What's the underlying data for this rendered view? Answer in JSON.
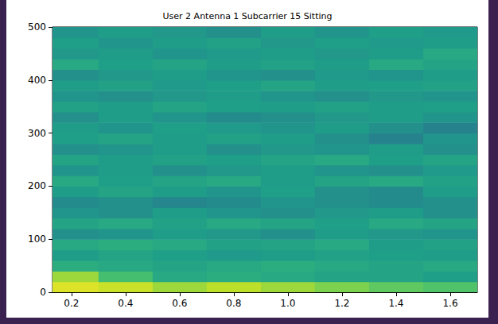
{
  "chart_data": {
    "type": "heatmap",
    "title": "User 2 Antenna 1 Subcarrier 15 Sitting",
    "x_edges": [
      0.13,
      0.3,
      0.5,
      0.7,
      0.9,
      1.1,
      1.3,
      1.5,
      1.7
    ],
    "y_edges": [
      0,
      20,
      40,
      60,
      80,
      100,
      120,
      140,
      160,
      180,
      200,
      220,
      240,
      260,
      280,
      300,
      320,
      340,
      360,
      380,
      400,
      420,
      440,
      460,
      480,
      500
    ],
    "cells": [
      [
        0.95,
        0.92,
        0.85,
        0.9,
        0.85,
        0.8,
        0.75,
        0.72
      ],
      [
        0.85,
        0.7,
        0.6,
        0.62,
        0.6,
        0.58,
        0.58,
        0.56
      ],
      [
        0.62,
        0.6,
        0.58,
        0.6,
        0.62,
        0.6,
        0.58,
        0.6
      ],
      [
        0.55,
        0.58,
        0.56,
        0.54,
        0.55,
        0.57,
        0.56,
        0.55
      ],
      [
        0.6,
        0.62,
        0.6,
        0.57,
        0.58,
        0.6,
        0.55,
        0.57
      ],
      [
        0.5,
        0.52,
        0.55,
        0.53,
        0.5,
        0.55,
        0.53,
        0.52
      ],
      [
        0.58,
        0.6,
        0.57,
        0.6,
        0.58,
        0.56,
        0.6,
        0.58
      ],
      [
        0.52,
        0.5,
        0.55,
        0.52,
        0.5,
        0.53,
        0.55,
        0.5
      ],
      [
        0.48,
        0.5,
        0.46,
        0.48,
        0.52,
        0.5,
        0.48,
        0.5
      ],
      [
        0.55,
        0.58,
        0.55,
        0.52,
        0.56,
        0.5,
        0.48,
        0.55
      ],
      [
        0.6,
        0.56,
        0.58,
        0.6,
        0.55,
        0.58,
        0.6,
        0.57
      ],
      [
        0.52,
        0.55,
        0.5,
        0.53,
        0.55,
        0.52,
        0.5,
        0.54
      ],
      [
        0.58,
        0.55,
        0.57,
        0.56,
        0.58,
        0.6,
        0.56,
        0.58
      ],
      [
        0.5,
        0.52,
        0.55,
        0.5,
        0.53,
        0.52,
        0.55,
        0.5
      ],
      [
        0.56,
        0.58,
        0.55,
        0.57,
        0.55,
        0.5,
        0.45,
        0.52
      ],
      [
        0.55,
        0.52,
        0.56,
        0.54,
        0.52,
        0.55,
        0.5,
        0.45
      ],
      [
        0.5,
        0.55,
        0.52,
        0.48,
        0.5,
        0.53,
        0.55,
        0.52
      ],
      [
        0.57,
        0.55,
        0.58,
        0.56,
        0.55,
        0.57,
        0.55,
        0.56
      ],
      [
        0.52,
        0.5,
        0.53,
        0.55,
        0.52,
        0.5,
        0.53,
        0.52
      ],
      [
        0.55,
        0.57,
        0.54,
        0.56,
        0.58,
        0.55,
        0.56,
        0.57
      ],
      [
        0.5,
        0.53,
        0.55,
        0.52,
        0.5,
        0.54,
        0.52,
        0.55
      ],
      [
        0.6,
        0.56,
        0.58,
        0.55,
        0.57,
        0.55,
        0.6,
        0.58
      ],
      [
        0.53,
        0.55,
        0.52,
        0.54,
        0.55,
        0.53,
        0.55,
        0.6
      ],
      [
        0.56,
        0.52,
        0.55,
        0.57,
        0.53,
        0.56,
        0.54,
        0.55
      ],
      [
        0.52,
        0.55,
        0.53,
        0.5,
        0.55,
        0.52,
        0.56,
        0.54
      ]
    ],
    "zlim": [
      0,
      1
    ],
    "xlim": [
      0.13,
      1.7
    ],
    "xticks": [
      0.2,
      0.4,
      0.6,
      0.8,
      {
        "value": 1,
        "label": "1.0"
      },
      1.2,
      1.4,
      1.6
    ],
    "ylim": [
      0,
      500
    ],
    "yticks": [
      0,
      100,
      200,
      300,
      400,
      500
    ],
    "grid": false
  }
}
